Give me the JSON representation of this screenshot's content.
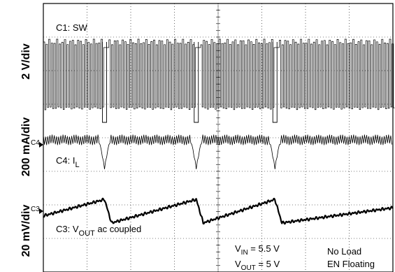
{
  "chart_data": {
    "type": "line",
    "title": "",
    "grid": true,
    "axis_labels": [
      "2 V/div",
      "200 mA/div",
      "20 mV/div"
    ],
    "channels": [
      {
        "id": "C1",
        "label": "C1: SW",
        "scale": "2 V/div",
        "signal": "switch node",
        "gap_times_div": [
          1.4,
          3.5,
          5.3
        ]
      },
      {
        "id": "C4",
        "label_prefix": "C4: I",
        "label_sub": "L",
        "marker": "C4",
        "scale": "200 mA/div",
        "signal": "inductor current",
        "gap_times_div": [
          1.4,
          3.5,
          5.3
        ]
      },
      {
        "id": "C3",
        "label_prefix": "C3: V",
        "label_sub": "OUT",
        "label_suffix": " ac coupled",
        "marker": "C3",
        "scale": "20 mV/div",
        "signal": "output voltage ripple",
        "sawtooth_peaks_div": [
          1.4,
          3.5,
          5.3
        ],
        "ripple_amplitude_div": 0.35
      }
    ],
    "annotations": {
      "vin_prefix": "V",
      "vin_sub": "IN",
      "vin_value": " = 5.5 V",
      "vout_prefix": "V",
      "vout_sub": "OUT",
      "vout_value": " = 5 V",
      "load": "No Load",
      "enable": "EN Floating"
    },
    "horizontal_divisions": 8,
    "vertical_divisions": 8
  },
  "colors": {
    "trace": "#000000",
    "grid": "#000000",
    "background": "#ffffff"
  }
}
